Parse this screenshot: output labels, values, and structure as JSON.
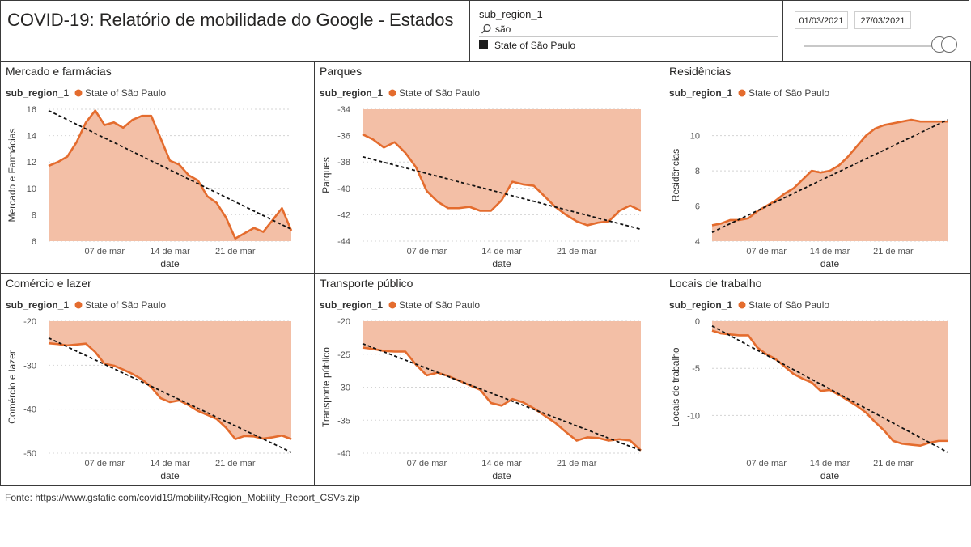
{
  "title": "COVID-19: Relatório de mobilidade do Google - Estados",
  "slicer": {
    "header": "sub_region_1",
    "search_value": "são",
    "option": "State of São Paulo"
  },
  "date_range": {
    "start": "01/03/2021",
    "end": "27/03/2021",
    "slider_start_fraction": 0.98,
    "slider_end_fraction": 1.0
  },
  "source": "Fonte: https://www.gstatic.com/covid19/mobility/Region_Mobility_Report_CSVs.zip",
  "colors": {
    "area": "#f3bfa6",
    "line": "#e46c2e",
    "trend": "#111111",
    "grid": "#d4d4d4"
  },
  "chart_data": [
    {
      "type": "area",
      "title": "Mercado e farmácias",
      "legend_title": "sub_region_1",
      "legend_item": "State of São Paulo",
      "ylabel": "Mercado e Farmácias",
      "xlabel": "date",
      "ylim": [
        6,
        16
      ],
      "yticks": [
        6,
        8,
        10,
        12,
        14,
        16
      ],
      "xticks": [
        {
          "x": 7,
          "label": "07 de mar"
        },
        {
          "x": 14,
          "label": "14 de mar"
        },
        {
          "x": 21,
          "label": "21 de mar"
        }
      ],
      "x": [
        1,
        2,
        3,
        4,
        5,
        6,
        7,
        8,
        9,
        10,
        11,
        12,
        13,
        14,
        15,
        16,
        17,
        18,
        19,
        20,
        21,
        22,
        23,
        24,
        25,
        26,
        27
      ],
      "values": [
        11.7,
        12.0,
        12.4,
        13.5,
        15.0,
        15.9,
        14.8,
        15.0,
        14.6,
        15.2,
        15.5,
        15.5,
        13.8,
        12.1,
        11.8,
        11.0,
        10.6,
        9.4,
        8.9,
        7.8,
        6.2,
        6.6,
        7.0,
        6.7,
        7.6,
        8.5,
        6.8
      ],
      "trend": [
        15.9,
        6.9
      ]
    },
    {
      "type": "area",
      "title": "Parques",
      "legend_title": "sub_region_1",
      "legend_item": "State of São Paulo",
      "ylabel": "Parques",
      "xlabel": "date",
      "ylim": [
        -44,
        -34
      ],
      "yticks": [
        -44,
        -42,
        -40,
        -38,
        -36,
        -34
      ],
      "xticks": [
        {
          "x": 7,
          "label": "07 de mar"
        },
        {
          "x": 14,
          "label": "14 de mar"
        },
        {
          "x": 21,
          "label": "21 de mar"
        }
      ],
      "x": [
        1,
        2,
        3,
        4,
        5,
        6,
        7,
        8,
        9,
        10,
        11,
        12,
        13,
        14,
        15,
        16,
        17,
        18,
        19,
        20,
        21,
        22,
        23,
        24,
        25,
        26,
        27
      ],
      "values": [
        -35.9,
        -36.3,
        -36.9,
        -36.5,
        -37.3,
        -38.4,
        -40.2,
        -41.0,
        -41.5,
        -41.5,
        -41.4,
        -41.7,
        -41.7,
        -40.9,
        -39.5,
        -39.7,
        -39.8,
        -40.6,
        -41.4,
        -42.0,
        -42.5,
        -42.8,
        -42.6,
        -42.5,
        -41.7,
        -41.3,
        -41.7
      ],
      "trend": [
        -37.6,
        -43.1
      ]
    },
    {
      "type": "area",
      "title": "Residências",
      "legend_title": "sub_region_1",
      "legend_item": "State of São Paulo",
      "ylabel": "Residências",
      "xlabel": "date",
      "ylim": [
        4,
        11.5
      ],
      "yticks": [
        4,
        6,
        8,
        10
      ],
      "xticks": [
        {
          "x": 7,
          "label": "07 de mar"
        },
        {
          "x": 14,
          "label": "14 de mar"
        },
        {
          "x": 21,
          "label": "21 de mar"
        }
      ],
      "x": [
        1,
        2,
        3,
        4,
        5,
        6,
        7,
        8,
        9,
        10,
        11,
        12,
        13,
        14,
        15,
        16,
        17,
        18,
        19,
        20,
        21,
        22,
        23,
        24,
        25,
        26,
        27
      ],
      "values": [
        4.9,
        5.0,
        5.2,
        5.2,
        5.3,
        5.7,
        6.0,
        6.3,
        6.7,
        7.0,
        7.5,
        8.0,
        7.9,
        8.0,
        8.3,
        8.8,
        9.4,
        10.0,
        10.4,
        10.6,
        10.7,
        10.8,
        10.9,
        10.8,
        10.8,
        10.8,
        10.8
      ],
      "trend": [
        4.5,
        10.9
      ]
    },
    {
      "type": "area",
      "title": "Comércio e lazer",
      "legend_title": "sub_region_1",
      "legend_item": "State of São Paulo",
      "ylabel": "Comércio e lazer",
      "xlabel": "date",
      "ylim": [
        -50,
        -20
      ],
      "yticks": [
        -50,
        -40,
        -30,
        -20
      ],
      "xticks": [
        {
          "x": 7,
          "label": "07 de mar"
        },
        {
          "x": 14,
          "label": "14 de mar"
        },
        {
          "x": 21,
          "label": "21 de mar"
        }
      ],
      "x": [
        1,
        2,
        3,
        4,
        5,
        6,
        7,
        8,
        9,
        10,
        11,
        12,
        13,
        14,
        15,
        16,
        17,
        18,
        19,
        20,
        21,
        22,
        23,
        24,
        25,
        26,
        27
      ],
      "values": [
        -25.0,
        -25.2,
        -25.5,
        -25.3,
        -25.1,
        -27.0,
        -29.7,
        -30.1,
        -31.0,
        -32.0,
        -33.2,
        -35.0,
        -37.5,
        -38.4,
        -38.0,
        -39.1,
        -40.4,
        -41.3,
        -42.2,
        -44.2,
        -46.8,
        -46.1,
        -46.2,
        -46.7,
        -46.4,
        -46.0,
        -46.8
      ],
      "trend": [
        -23.8,
        -49.8
      ]
    },
    {
      "type": "area",
      "title": "Transporte público",
      "legend_title": "sub_region_1",
      "legend_item": "State of São Paulo",
      "ylabel": "Transporte público",
      "xlabel": "date",
      "ylim": [
        -40,
        -20
      ],
      "yticks": [
        -40,
        -35,
        -30,
        -25,
        -20
      ],
      "xticks": [
        {
          "x": 7,
          "label": "07 de mar"
        },
        {
          "x": 14,
          "label": "14 de mar"
        },
        {
          "x": 21,
          "label": "21 de mar"
        }
      ],
      "x": [
        1,
        2,
        3,
        4,
        5,
        6,
        7,
        8,
        9,
        10,
        11,
        12,
        13,
        14,
        15,
        16,
        17,
        18,
        19,
        20,
        21,
        22,
        23,
        24,
        25,
        26,
        27
      ],
      "values": [
        -24.0,
        -24.2,
        -24.5,
        -24.6,
        -24.6,
        -26.6,
        -28.2,
        -27.8,
        -28.3,
        -29.0,
        -29.7,
        -30.4,
        -32.4,
        -32.8,
        -31.8,
        -32.3,
        -33.2,
        -34.3,
        -35.4,
        -36.8,
        -38.1,
        -37.6,
        -37.7,
        -38.1,
        -37.9,
        -38.1,
        -39.6
      ],
      "trend": [
        -23.4,
        -39.6
      ]
    },
    {
      "type": "area",
      "title": "Locais de trabalho",
      "legend_title": "sub_region_1",
      "legend_item": "State of São Paulo",
      "ylabel": "Locais de trabalho",
      "xlabel": "date",
      "ylim": [
        -14,
        0
      ],
      "yticks": [
        -10,
        -5,
        0
      ],
      "xticks": [
        {
          "x": 7,
          "label": "07 de mar"
        },
        {
          "x": 14,
          "label": "14 de mar"
        },
        {
          "x": 21,
          "label": "21 de mar"
        }
      ],
      "x": [
        1,
        2,
        3,
        4,
        5,
        6,
        7,
        8,
        9,
        10,
        11,
        12,
        13,
        14,
        15,
        16,
        17,
        18,
        19,
        20,
        21,
        22,
        23,
        24,
        25,
        26,
        27
      ],
      "values": [
        -1.0,
        -1.3,
        -1.4,
        -1.5,
        -1.5,
        -2.8,
        -3.5,
        -4.0,
        -4.8,
        -5.6,
        -6.1,
        -6.5,
        -7.4,
        -7.3,
        -7.8,
        -8.4,
        -9.0,
        -9.7,
        -10.7,
        -11.6,
        -12.7,
        -13.0,
        -13.1,
        -13.2,
        -12.9,
        -12.7,
        -12.7
      ],
      "trend": [
        -0.5,
        -13.9
      ]
    }
  ]
}
